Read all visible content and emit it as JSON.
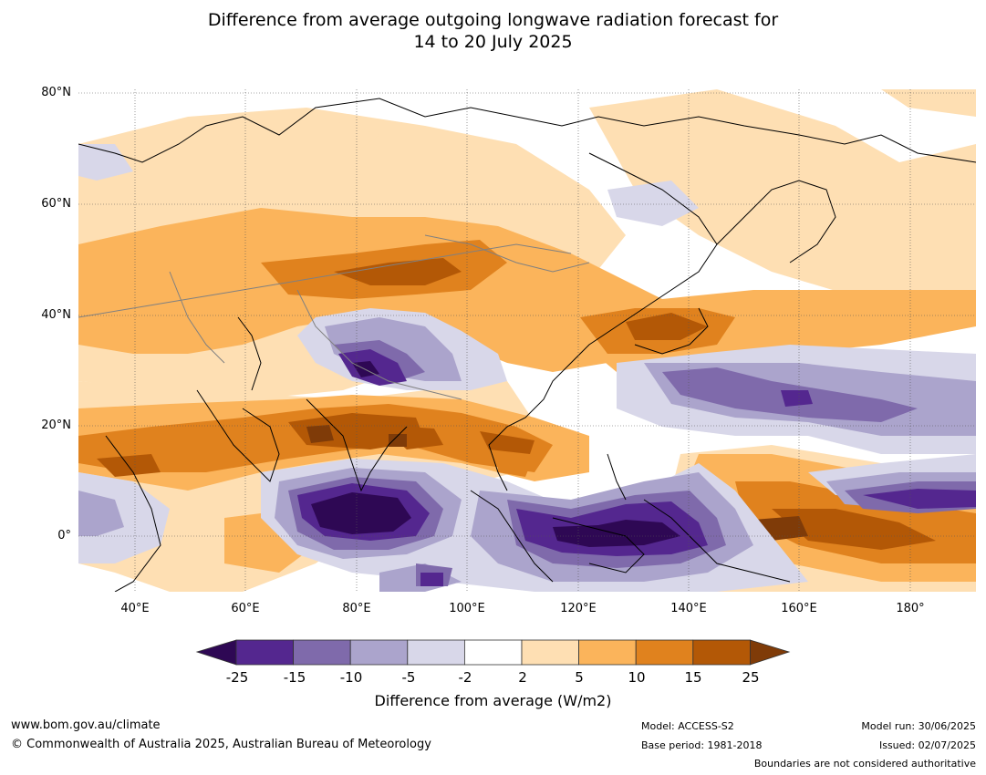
{
  "title_line1": "Difference from average outgoing longwave radiation forecast for",
  "title_line2": "14 to 20 July 2025",
  "lat_labels": [
    "80°N",
    "60°N",
    "40°N",
    "20°N",
    "0°"
  ],
  "lon_labels": [
    "40°E",
    "60°E",
    "80°E",
    "100°E",
    "120°E",
    "140°E",
    "160°E",
    "180°"
  ],
  "colorbar": {
    "label": "Difference from average (W/m2)",
    "ticks": [
      "-25",
      "-15",
      "-10",
      "-5",
      "-2",
      "2",
      "5",
      "10",
      "15",
      "25"
    ],
    "colors": [
      "#2e0854",
      "#54278f",
      "#7f6aab",
      "#aba4cc",
      "#d8d7e9",
      "#ffffff",
      "#fedfb3",
      "#fbb45b",
      "#e0821e",
      "#b35806",
      "#7f3b08"
    ]
  },
  "footer": {
    "website": "www.bom.gov.au/climate",
    "copyright": "© Commonwealth of Australia 2025, Australian Bureau of Meteorology",
    "model": "Model: ACCESS-S2",
    "base_period": "Base period: 1981-2018",
    "model_run": "Model run: 30/06/2025",
    "issued": "Issued: 02/07/2025",
    "disclaimer": "Boundaries are not considered authoritative"
  }
}
